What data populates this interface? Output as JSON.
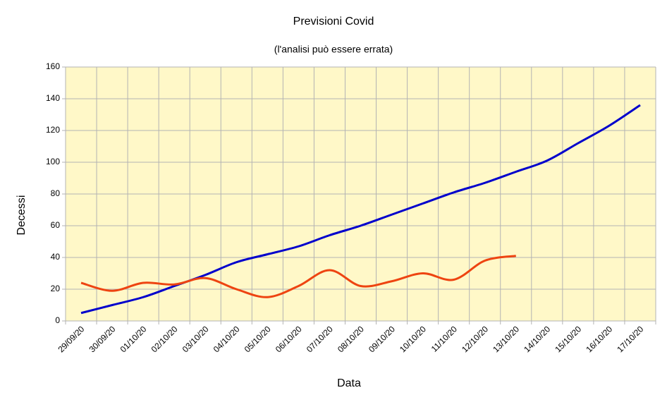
{
  "chart_data": {
    "type": "line",
    "title": "Previsioni Covid",
    "subtitle": "(l'analisi può essere errata)",
    "xlabel": "Data",
    "ylabel": "Decessi",
    "categories": [
      "29/09/20",
      "30/09/20",
      "01/10/20",
      "02/10/20",
      "03/10/20",
      "04/10/20",
      "05/10/20",
      "06/10/20",
      "07/10/20",
      "08/10/20",
      "09/10/20",
      "10/10/20",
      "11/10/20",
      "12/10/20",
      "13/10/20",
      "14/10/20",
      "15/10/20",
      "16/10/20",
      "17/10/20"
    ],
    "series": [
      {
        "color": "#0000cc",
        "values": [
          5,
          10,
          15,
          22,
          29,
          37,
          42,
          47,
          54,
          60,
          67,
          74,
          81,
          87,
          94,
          101,
          112,
          123,
          136
        ]
      },
      {
        "color": "#ee4411",
        "values": [
          24,
          19,
          24,
          23,
          27,
          20,
          15,
          22,
          32,
          22,
          25,
          30,
          26,
          38,
          41,
          null,
          null,
          null,
          null
        ]
      }
    ],
    "ylim": [
      0,
      160
    ],
    "yticks": [
      0,
      20,
      40,
      60,
      80,
      100,
      120,
      140,
      160
    ],
    "grid": true,
    "plot_background": "#fff8c8"
  }
}
